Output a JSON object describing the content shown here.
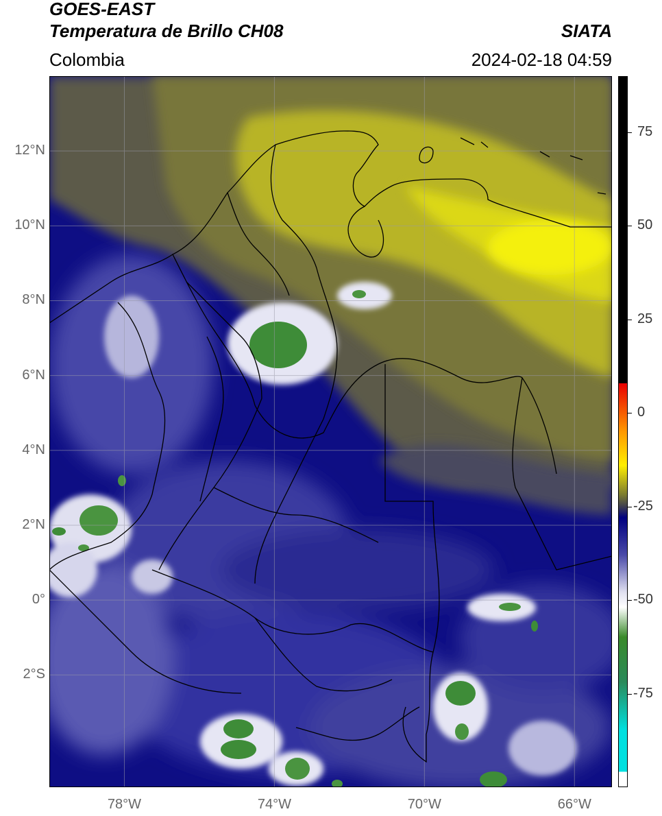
{
  "header": {
    "line1": "GOES-EAST",
    "line2": "Temperatura de Brillo CH08",
    "region": "Colombia",
    "agency": "SIATA",
    "datetime": "2024-02-18 04:59"
  },
  "map": {
    "lat_ticks": [
      {
        "value": 12,
        "label": "12°N"
      },
      {
        "value": 10,
        "label": "10°N"
      },
      {
        "value": 8,
        "label": "8°N"
      },
      {
        "value": 6,
        "label": "6°N"
      },
      {
        "value": 4,
        "label": "4°N"
      },
      {
        "value": 2,
        "label": "2°N"
      },
      {
        "value": 0,
        "label": "0°"
      },
      {
        "value": -2,
        "label": "2°S"
      }
    ],
    "lon_ticks": [
      {
        "value": -78,
        "label": "78°W"
      },
      {
        "value": -74,
        "label": "74°W"
      },
      {
        "value": -70,
        "label": "70°W"
      },
      {
        "value": -66,
        "label": "66°W"
      }
    ],
    "lon_range": [
      -80,
      -65
    ],
    "lat_range": [
      -5,
      14
    ],
    "grid": true
  },
  "colorbar": {
    "range": [
      -100,
      90
    ],
    "ticks": [
      {
        "value": 75,
        "label": "75"
      },
      {
        "value": 50,
        "label": "50"
      },
      {
        "value": 25,
        "label": "25"
      },
      {
        "value": 0,
        "label": "0"
      },
      {
        "value": -25,
        "label": "-25"
      },
      {
        "value": -50,
        "label": "-50"
      },
      {
        "value": -75,
        "label": "-75"
      }
    ],
    "stops": [
      {
        "value": 90,
        "color": "#000000"
      },
      {
        "value": 8,
        "color": "#000000"
      },
      {
        "value": 7.9,
        "color": "#e80000"
      },
      {
        "value": -5,
        "color": "#ff9900"
      },
      {
        "value": -14,
        "color": "#ffee00"
      },
      {
        "value": -22,
        "color": "#7a7a30"
      },
      {
        "value": -25,
        "color": "#404050"
      },
      {
        "value": -28,
        "color": "#000080"
      },
      {
        "value": -38,
        "color": "#4a4aa8"
      },
      {
        "value": -48,
        "color": "#e0e0f0"
      },
      {
        "value": -52,
        "color": "#ffffff"
      },
      {
        "value": -60,
        "color": "#3a8a2a"
      },
      {
        "value": -72,
        "color": "#2a8a5a"
      },
      {
        "value": -85,
        "color": "#00e0e0"
      },
      {
        "value": -96,
        "color": "#00e0e0"
      },
      {
        "value": -96.1,
        "color": "#ffffff"
      },
      {
        "value": -100,
        "color": "#ffffff"
      }
    ]
  },
  "colors": {
    "deep_blue": "#0c0c82",
    "mid_blue": "#3a3aa0",
    "light_blue": "#8a8ac8",
    "cloud_white": "#eeeef8",
    "cloud_green": "#3d8a3a",
    "olive": "#6e6a3a",
    "yellow": "#d6d21a",
    "bright_yellow": "#f2ee10",
    "gray": "#55555a"
  }
}
